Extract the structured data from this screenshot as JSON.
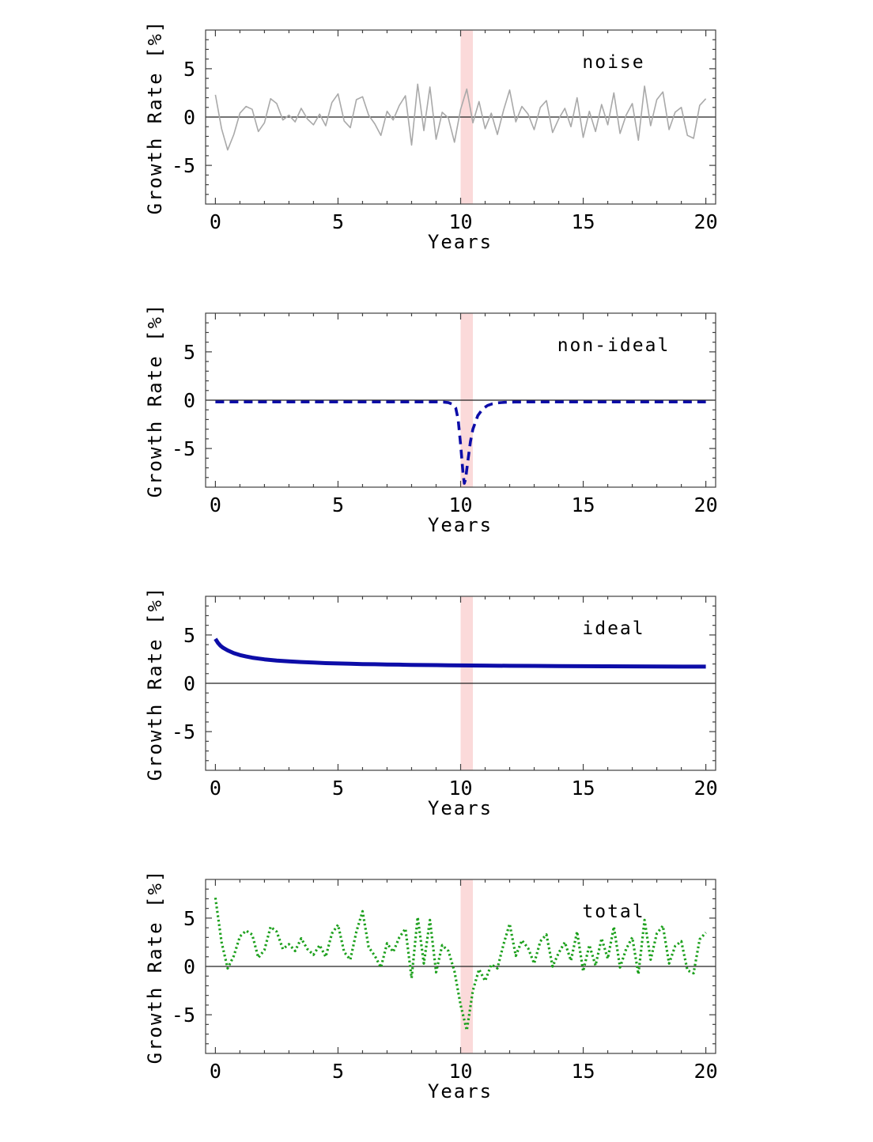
{
  "page": {
    "background": "#ffffff"
  },
  "style": {
    "frame_color": "#3f3f3f",
    "zero_line_color": "#222222",
    "text_color": "#000000",
    "band_color": "#fbdada"
  },
  "chart_data": [
    {
      "type": "line",
      "label": "noise",
      "xlabel": "Years",
      "ylabel": "Growth Rate [%]",
      "xlim": [
        -0.4,
        20.4
      ],
      "ylim": [
        -9,
        9
      ],
      "xticks": [
        0,
        5,
        10,
        15,
        20
      ],
      "yticks": [
        -5,
        0,
        5
      ],
      "xminor_step": 1,
      "yminor_step": 1,
      "zero_line": true,
      "band": {
        "x0": 10.0,
        "x1": 10.5
      },
      "series": [
        {
          "name": "noise",
          "color": "#a9a9a9",
          "dash": "solid",
          "width": 1.6,
          "x": [
            0,
            0.25,
            0.5,
            0.75,
            1,
            1.25,
            1.5,
            1.75,
            2,
            2.25,
            2.5,
            2.75,
            3,
            3.25,
            3.5,
            3.75,
            4,
            4.25,
            4.5,
            4.75,
            5,
            5.25,
            5.5,
            5.75,
            6,
            6.25,
            6.5,
            6.75,
            7,
            7.25,
            7.5,
            7.75,
            8,
            8.25,
            8.5,
            8.75,
            9,
            9.25,
            9.5,
            9.75,
            10,
            10.25,
            10.5,
            10.75,
            11,
            11.25,
            11.5,
            11.75,
            12,
            12.25,
            12.5,
            12.75,
            13,
            13.25,
            13.5,
            13.75,
            14,
            14.25,
            14.5,
            14.75,
            15,
            15.25,
            15.5,
            15.75,
            16,
            16.25,
            16.5,
            16.75,
            17,
            17.25,
            17.5,
            17.75,
            18,
            18.25,
            18.5,
            18.75,
            19,
            19.25,
            19.5,
            19.75,
            20
          ],
          "y": [
            2.3,
            -1.2,
            -3.4,
            -1.8,
            0.4,
            1.1,
            0.8,
            -1.5,
            -0.6,
            1.9,
            1.4,
            -0.3,
            0.2,
            -0.5,
            0.9,
            -0.2,
            -0.8,
            0.3,
            -0.9,
            1.5,
            2.4,
            -0.4,
            -1.1,
            1.8,
            2.1,
            0.2,
            -0.7,
            -1.9,
            0.6,
            -0.3,
            1.2,
            2.2,
            -2.9,
            3.4,
            -1.4,
            3.1,
            -2.3,
            0.5,
            -0.1,
            -2.6,
            0.8,
            2.9,
            -0.6,
            1.6,
            -1.2,
            0.4,
            -1.8,
            0.7,
            2.8,
            -0.5,
            1.1,
            0.3,
            -1.3,
            1.0,
            1.7,
            -1.6,
            -0.2,
            0.9,
            -1.0,
            2.0,
            -2.1,
            0.6,
            -1.5,
            1.3,
            -0.8,
            2.5,
            -1.7,
            0.2,
            1.4,
            -2.4,
            3.2,
            -0.9,
            1.8,
            2.6,
            -1.3,
            0.5,
            1.0,
            -1.9,
            -2.2,
            1.2,
            1.9
          ]
        }
      ]
    },
    {
      "type": "line",
      "label": "non-ideal",
      "xlabel": "Years",
      "ylabel": "Growth Rate [%]",
      "xlim": [
        -0.4,
        20.4
      ],
      "ylim": [
        -9,
        9
      ],
      "xticks": [
        0,
        5,
        10,
        15,
        20
      ],
      "yticks": [
        -5,
        0,
        5
      ],
      "xminor_step": 1,
      "yminor_step": 1,
      "zero_line": true,
      "band": {
        "x0": 10.0,
        "x1": 10.5
      },
      "series": [
        {
          "name": "non-ideal",
          "color": "#0d0da8",
          "dash": "dashed",
          "width": 3.6,
          "x": [
            0,
            1,
            2,
            3,
            4,
            5,
            6,
            7,
            8,
            9,
            9.3,
            9.5,
            9.7,
            9.8,
            9.9,
            10,
            10.1,
            10.15,
            10.2,
            10.3,
            10.4,
            10.5,
            10.7,
            10.9,
            11.1,
            11.3,
            11.5,
            11.8,
            12.2,
            13,
            14,
            15,
            16,
            17,
            18,
            19,
            20
          ],
          "y": [
            -0.18,
            -0.18,
            -0.18,
            -0.18,
            -0.18,
            -0.18,
            -0.18,
            -0.18,
            -0.18,
            -0.18,
            -0.2,
            -0.25,
            -0.45,
            -0.8,
            -2.0,
            -4.6,
            -7.6,
            -8.6,
            -8.2,
            -6.2,
            -4.3,
            -3.0,
            -1.6,
            -0.9,
            -0.55,
            -0.38,
            -0.28,
            -0.22,
            -0.19,
            -0.18,
            -0.18,
            -0.18,
            -0.18,
            -0.18,
            -0.18,
            -0.18,
            -0.18
          ]
        }
      ]
    },
    {
      "type": "line",
      "label": "ideal",
      "xlabel": "Years",
      "ylabel": "Growth Rate [%]",
      "xlim": [
        -0.4,
        20.4
      ],
      "ylim": [
        -9,
        9
      ],
      "xticks": [
        0,
        5,
        10,
        15,
        20
      ],
      "yticks": [
        -5,
        0,
        5
      ],
      "xminor_step": 1,
      "yminor_step": 1,
      "zero_line": true,
      "band": {
        "x0": 10.0,
        "x1": 10.5
      },
      "series": [
        {
          "name": "ideal",
          "color": "#0d0da8",
          "dash": "solid",
          "width": 5,
          "x": [
            0,
            0.1,
            0.2,
            0.3,
            0.4,
            0.5,
            0.75,
            1,
            1.25,
            1.5,
            1.75,
            2,
            2.5,
            3,
            3.5,
            4,
            4.5,
            5,
            5.5,
            6,
            6.5,
            7,
            7.5,
            8,
            8.5,
            9,
            9.5,
            10,
            11,
            12,
            13,
            14,
            15,
            16,
            17,
            18,
            19,
            20
          ],
          "y": [
            4.6,
            4.2,
            3.9,
            3.7,
            3.55,
            3.4,
            3.12,
            2.92,
            2.77,
            2.65,
            2.56,
            2.48,
            2.36,
            2.27,
            2.2,
            2.14,
            2.09,
            2.05,
            2.02,
            1.99,
            1.97,
            1.94,
            1.93,
            1.91,
            1.89,
            1.88,
            1.86,
            1.85,
            1.83,
            1.81,
            1.8,
            1.78,
            1.77,
            1.76,
            1.75,
            1.74,
            1.73,
            1.73
          ]
        }
      ]
    },
    {
      "type": "line",
      "label": "total",
      "xlabel": "Years",
      "ylabel": "Growth Rate [%]",
      "xlim": [
        -0.4,
        20.4
      ],
      "ylim": [
        -9,
        9
      ],
      "xticks": [
        0,
        5,
        10,
        15,
        20
      ],
      "yticks": [
        -5,
        0,
        5
      ],
      "xminor_step": 1,
      "yminor_step": 1,
      "zero_line": true,
      "band": {
        "x0": 10.0,
        "x1": 10.5
      },
      "series": [
        {
          "name": "total",
          "color": "#1ca01c",
          "dash": "dotted",
          "width": 3.2,
          "x": [
            0,
            0.25,
            0.5,
            0.75,
            1,
            1.25,
            1.5,
            1.75,
            2,
            2.25,
            2.5,
            2.75,
            3,
            3.25,
            3.5,
            3.75,
            4,
            4.25,
            4.5,
            4.75,
            5,
            5.25,
            5.5,
            5.75,
            6,
            6.25,
            6.5,
            6.75,
            7,
            7.25,
            7.5,
            7.75,
            8,
            8.25,
            8.5,
            8.75,
            9,
            9.25,
            9.5,
            9.75,
            10,
            10.25,
            10.5,
            10.75,
            11,
            11.25,
            11.5,
            11.75,
            12,
            12.25,
            12.5,
            12.75,
            13,
            13.25,
            13.5,
            13.75,
            14,
            14.25,
            14.5,
            14.75,
            15,
            15.25,
            15.5,
            15.75,
            16,
            16.25,
            16.5,
            16.75,
            17,
            17.25,
            17.5,
            17.75,
            18,
            18.25,
            18.5,
            18.75,
            19,
            19.25,
            19.5,
            19.75,
            20
          ],
          "y": [
            7.1,
            2.5,
            -0.2,
            1.1,
            3.1,
            3.7,
            3.3,
            0.9,
            1.7,
            4.1,
            3.6,
            1.8,
            2.3,
            1.6,
            2.9,
            1.8,
            1.2,
            2.2,
            1.0,
            3.4,
            4.3,
            1.5,
            0.7,
            3.6,
            5.7,
            2.0,
            1.1,
            -0.1,
            2.4,
            1.5,
            3.0,
            3.9,
            -1.2,
            5.1,
            0.3,
            4.8,
            -0.6,
            2.2,
            1.6,
            -0.5,
            -4.0,
            -6.6,
            -2.5,
            -0.3,
            -1.5,
            0.2,
            -0.2,
            2.3,
            4.4,
            1.1,
            2.7,
            1.9,
            0.3,
            2.6,
            3.3,
            0.0,
            1.4,
            2.5,
            0.6,
            3.6,
            -0.5,
            2.2,
            0.1,
            2.9,
            0.8,
            4.1,
            -0.1,
            1.8,
            3.0,
            -0.8,
            4.8,
            0.7,
            3.4,
            4.2,
            0.3,
            2.1,
            2.6,
            -0.4,
            -0.7,
            2.8,
            3.5
          ]
        }
      ]
    }
  ]
}
